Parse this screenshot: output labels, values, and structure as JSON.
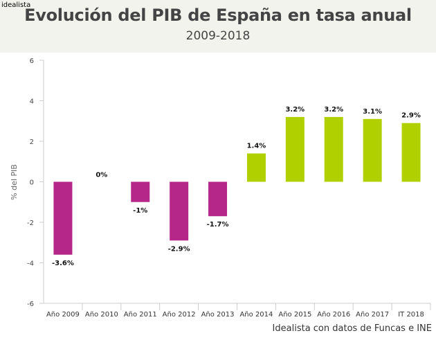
{
  "header": {
    "logo": "idealista",
    "title": "Evolución del PIB de España en tasa anual",
    "subtitle": "2009-2018"
  },
  "source": "Idealista con datos de Funcas e INE",
  "chart_data": {
    "type": "bar",
    "title": "Evolución del PIB de España en tasa anual",
    "subtitle": "2009-2018",
    "ylabel": "% del PIB",
    "xlabel": "",
    "ylim": [
      -6,
      6
    ],
    "yticks": [
      -6,
      -4,
      -2,
      0,
      2,
      4,
      6
    ],
    "categories": [
      "Año 2009",
      "Año 2010",
      "Año 2011",
      "Año 2012",
      "Año 2013",
      "Año 2014",
      "Año 2015",
      "Año 2016",
      "Año 2017",
      "IT 2018"
    ],
    "values": [
      -3.6,
      0,
      -1,
      -2.9,
      -1.7,
      1.4,
      3.2,
      3.2,
      3.1,
      2.9
    ],
    "data_labels": [
      "-3.6%",
      "0%",
      "-1%",
      "-2.9%",
      "-1.7%",
      "1.4%",
      "3.2%",
      "3.2%",
      "3.1%",
      "2.9%"
    ],
    "colors": {
      "negative": "#b5288a",
      "positive": "#b0d000"
    },
    "grid": false
  }
}
